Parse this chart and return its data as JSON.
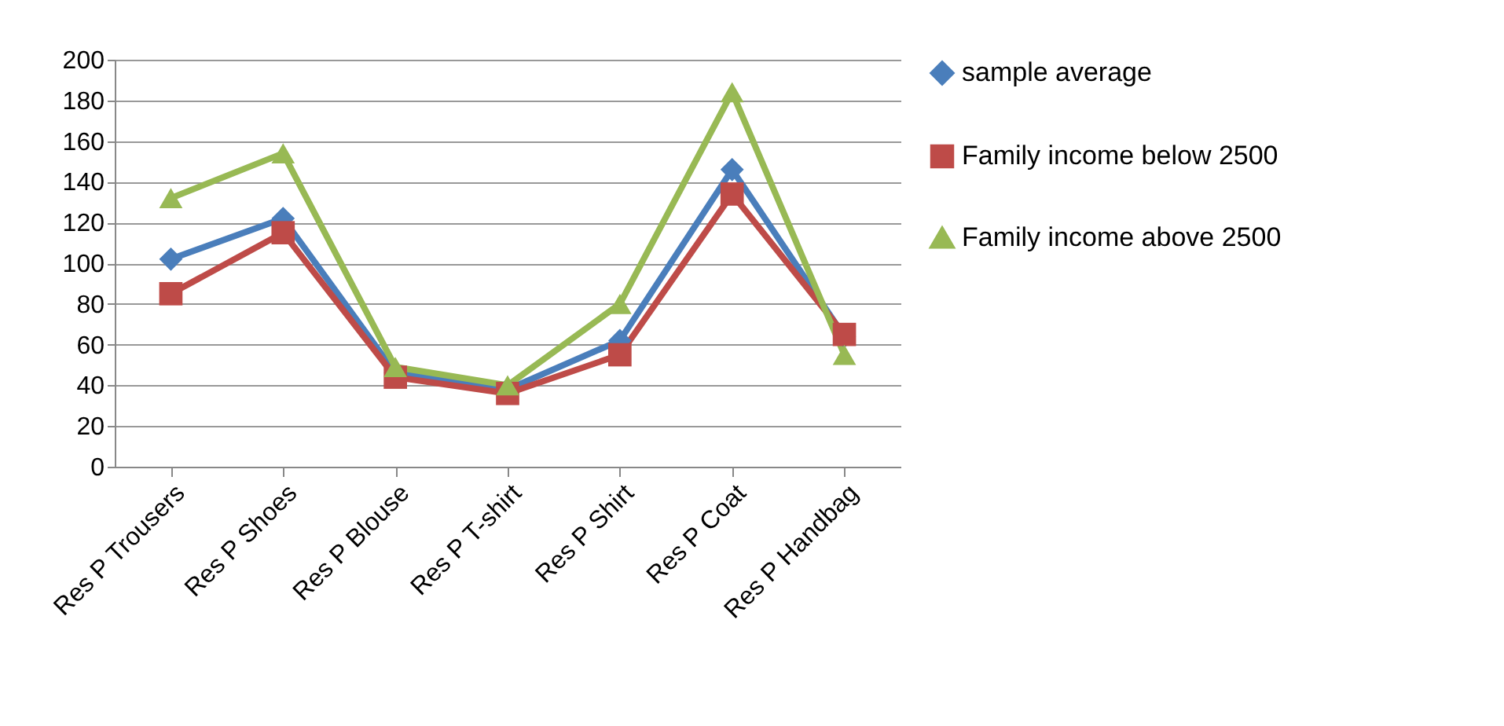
{
  "chart_data": {
    "type": "line",
    "categories": [
      "Res P Trousers",
      "Res P Shoes",
      "Res P Blouse",
      "Res P T-shirt",
      "Res P Shirt",
      "Res P Coat",
      "Res P Handbag"
    ],
    "series": [
      {
        "name": "sample average",
        "color": "#4a7ebb",
        "marker": "diamond",
        "values": [
          102,
          122,
          46,
          38,
          62,
          146,
          64
        ]
      },
      {
        "name": "Family income below 2500",
        "color": "#be4b48",
        "marker": "square",
        "values": [
          85,
          115,
          44,
          36,
          55,
          134,
          65
        ]
      },
      {
        "name": "Family income above 2500",
        "color": "#98b954",
        "marker": "triangle",
        "values": [
          132,
          154,
          49,
          40,
          80,
          184,
          55
        ]
      }
    ],
    "ylim": [
      0,
      200
    ],
    "yticks": [
      0,
      20,
      40,
      60,
      80,
      100,
      120,
      140,
      160,
      180,
      200
    ],
    "grid": "y",
    "legend": "right"
  }
}
